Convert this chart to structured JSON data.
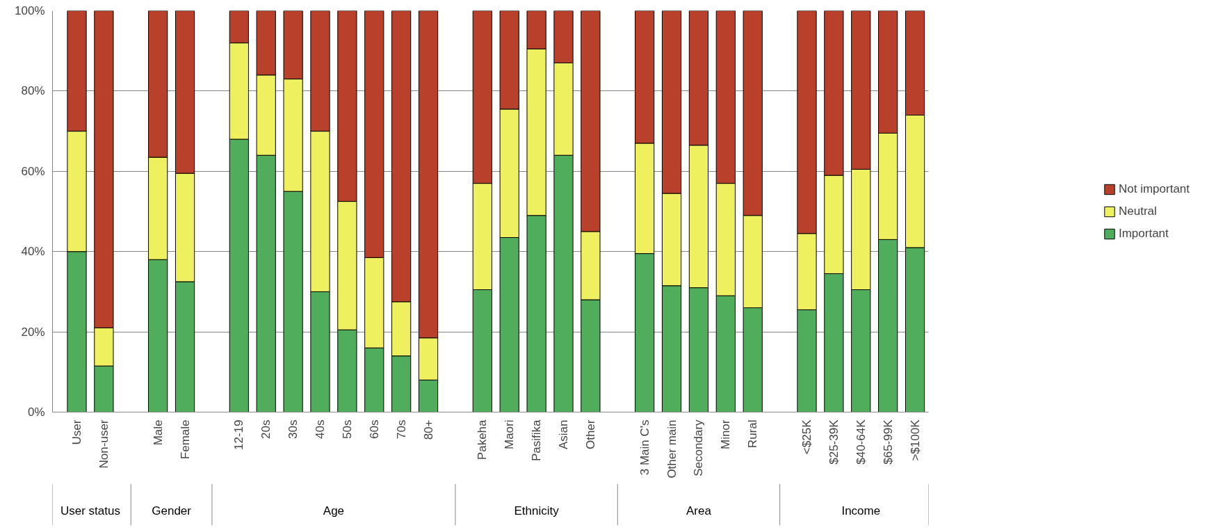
{
  "chart_data": {
    "type": "bar",
    "stacked": true,
    "categories": [
      "User",
      "Non-user",
      null,
      "Male",
      "Female",
      null,
      "12-19",
      "20s",
      "30s",
      "40s",
      "50s",
      "60s",
      "70s",
      "80+",
      null,
      "Pakeha",
      "Maori",
      "Pasifika",
      "Asian",
      "Other",
      null,
      "3 Main C's",
      "Other main",
      "Secondary",
      "Minor",
      "Rural",
      null,
      "<$25K",
      "$25-39K",
      "$40-64K",
      "$65-99K",
      ">$100K"
    ],
    "series": [
      {
        "name": "Important",
        "color": "#4fad5b",
        "values": [
          40,
          11.5,
          null,
          38,
          32.5,
          null,
          68,
          64,
          55,
          30,
          20.5,
          16,
          14,
          8,
          null,
          30.5,
          43.5,
          49,
          64,
          28,
          null,
          39.5,
          31.5,
          31,
          29,
          26,
          null,
          25.5,
          34.5,
          30.5,
          43,
          41
        ]
      },
      {
        "name": "Neutral",
        "color": "#eef060",
        "values": [
          30,
          9.5,
          null,
          25.5,
          27,
          null,
          24,
          20,
          28,
          40,
          32,
          22.5,
          13.5,
          10.5,
          null,
          26.5,
          32,
          41.5,
          23,
          17,
          null,
          27.5,
          23,
          35.5,
          28,
          23,
          null,
          19,
          24.5,
          30,
          26.5,
          33
        ]
      },
      {
        "name": "Not important",
        "color": "#b9402b",
        "values": [
          30,
          79,
          null,
          36.5,
          40.5,
          null,
          8,
          16,
          17,
          30,
          47.5,
          61.5,
          72.5,
          81.5,
          null,
          43,
          24.5,
          9.5,
          13,
          55,
          null,
          33,
          45.5,
          33.5,
          43,
          51,
          null,
          55.5,
          41,
          39.5,
          30.5,
          26
        ]
      }
    ],
    "annotations": [
      "User status",
      "Gender",
      "Age",
      "Ethnicity",
      "Area",
      "Income"
    ],
    "ylim": [
      0,
      100
    ],
    "yticks": [
      {
        "value": 0,
        "label": "0%"
      },
      {
        "value": 20,
        "label": "20%"
      },
      {
        "value": 40,
        "label": "40%"
      },
      {
        "value": 60,
        "label": "60%"
      },
      {
        "value": 80,
        "label": "80%"
      },
      {
        "value": 100,
        "label": "100%"
      }
    ],
    "grid": "y",
    "legend": "right"
  }
}
